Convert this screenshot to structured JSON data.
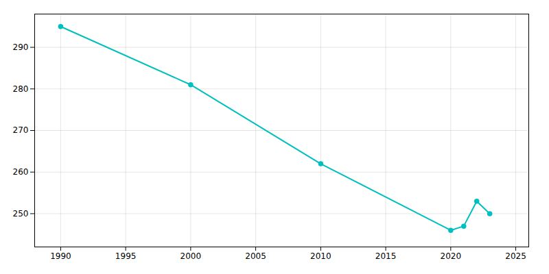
{
  "chart_data": {
    "type": "line",
    "x": [
      1990,
      2000,
      2010,
      2020,
      2021,
      2022,
      2023
    ],
    "values": [
      295,
      281,
      262,
      246,
      247,
      253,
      250
    ],
    "color": "#00BFBF",
    "marker": "circle",
    "xlim": [
      1988,
      2026
    ],
    "ylim": [
      242,
      298
    ],
    "xticks": [
      1990,
      1995,
      2000,
      2005,
      2010,
      2015,
      2020,
      2025
    ],
    "yticks": [
      250,
      260,
      270,
      280,
      290
    ],
    "grid": true
  }
}
